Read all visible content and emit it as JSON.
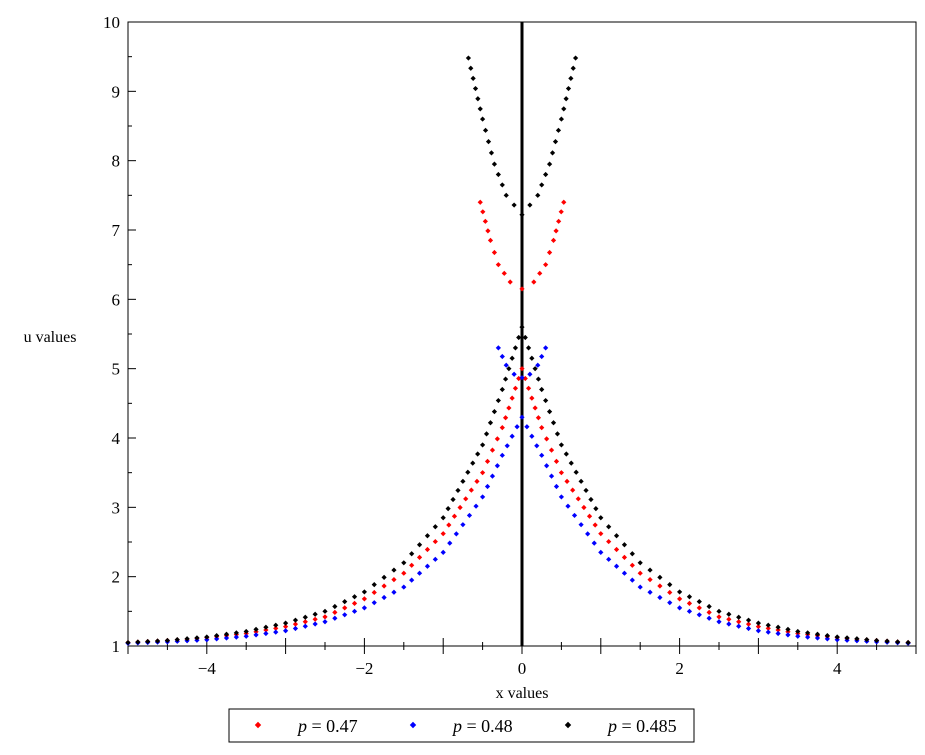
{
  "chart_data": {
    "type": "scatter",
    "title": "",
    "xlabel": "x values",
    "ylabel": "u values",
    "xlim": [
      -5,
      5
    ],
    "ylim": [
      1,
      10
    ],
    "x_ticks": [
      -4,
      -2,
      0,
      2,
      4
    ],
    "x_tick_labels": [
      "−4",
      "−2",
      "0",
      "2",
      "4"
    ],
    "y_ticks": [
      1,
      2,
      3,
      4,
      5,
      6,
      7,
      8,
      9,
      10
    ],
    "y_tick_labels": [
      "1",
      "2",
      "3",
      "4",
      "5",
      "6",
      "7",
      "8",
      "9",
      "10"
    ],
    "grid": false,
    "legend_position": "bottom",
    "series": [
      {
        "name": "p = 0.47",
        "legend_var": "p",
        "legend_value": "= 0.47",
        "color": "#ff0000",
        "lower_branch": [
          [
            -5.0,
            1.05
          ],
          [
            -4.5,
            1.08
          ],
          [
            -4.0,
            1.12
          ],
          [
            -3.5,
            1.18
          ],
          [
            -3.0,
            1.28
          ],
          [
            -2.5,
            1.42
          ],
          [
            -2.0,
            1.68
          ],
          [
            -1.5,
            2.05
          ],
          [
            -1.0,
            2.62
          ],
          [
            -0.5,
            3.5
          ],
          [
            -0.25,
            4.15
          ],
          [
            0.0,
            5.0
          ],
          [
            0.25,
            4.15
          ],
          [
            0.5,
            3.5
          ],
          [
            1.0,
            2.62
          ],
          [
            1.5,
            2.05
          ],
          [
            2.0,
            1.68
          ],
          [
            2.5,
            1.42
          ],
          [
            3.0,
            1.28
          ],
          [
            3.5,
            1.18
          ],
          [
            4.0,
            1.12
          ],
          [
            4.5,
            1.08
          ],
          [
            4.9,
            1.05
          ]
        ],
        "upper_branch": [
          [
            -0.53,
            7.4
          ],
          [
            -0.4,
            6.85
          ],
          [
            -0.3,
            6.5
          ],
          [
            -0.15,
            6.25
          ],
          [
            0.0,
            6.15
          ],
          [
            0.15,
            6.25
          ],
          [
            0.3,
            6.5
          ],
          [
            0.4,
            6.85
          ],
          [
            0.53,
            7.4
          ]
        ]
      },
      {
        "name": "p = 0.48",
        "legend_var": "p",
        "legend_value": "= 0.48",
        "color": "#0000ff",
        "lower_branch": [
          [
            -5.0,
            1.04
          ],
          [
            -4.5,
            1.06
          ],
          [
            -4.0,
            1.09
          ],
          [
            -3.5,
            1.14
          ],
          [
            -3.0,
            1.22
          ],
          [
            -2.5,
            1.35
          ],
          [
            -2.0,
            1.55
          ],
          [
            -1.5,
            1.85
          ],
          [
            -1.0,
            2.35
          ],
          [
            -0.5,
            3.15
          ],
          [
            -0.25,
            3.75
          ],
          [
            0.0,
            4.3
          ],
          [
            0.25,
            3.75
          ],
          [
            0.5,
            3.15
          ],
          [
            1.0,
            2.35
          ],
          [
            1.5,
            1.85
          ],
          [
            2.0,
            1.55
          ],
          [
            2.5,
            1.35
          ],
          [
            3.0,
            1.22
          ],
          [
            3.5,
            1.14
          ],
          [
            4.0,
            1.09
          ],
          [
            4.5,
            1.06
          ],
          [
            4.9,
            1.04
          ]
        ],
        "upper_branch": [
          [
            -0.3,
            5.3
          ],
          [
            -0.2,
            5.05
          ],
          [
            -0.1,
            4.92
          ],
          [
            0.0,
            4.87
          ],
          [
            0.1,
            4.92
          ],
          [
            0.2,
            5.05
          ],
          [
            0.3,
            5.3
          ]
        ]
      },
      {
        "name": "p = 0.485",
        "legend_var": "p",
        "legend_value": "= 0.485",
        "color": "#000000",
        "lower_branch": [
          [
            -5.0,
            1.05
          ],
          [
            -4.5,
            1.08
          ],
          [
            -4.0,
            1.13
          ],
          [
            -3.5,
            1.21
          ],
          [
            -3.0,
            1.33
          ],
          [
            -2.5,
            1.5
          ],
          [
            -2.0,
            1.78
          ],
          [
            -1.5,
            2.2
          ],
          [
            -1.0,
            2.85
          ],
          [
            -0.5,
            3.9
          ],
          [
            -0.25,
            4.7
          ],
          [
            0.0,
            5.6
          ],
          [
            0.25,
            4.7
          ],
          [
            0.5,
            3.9
          ],
          [
            1.0,
            2.85
          ],
          [
            1.5,
            2.2
          ],
          [
            2.0,
            1.78
          ],
          [
            2.5,
            1.5
          ],
          [
            3.0,
            1.33
          ],
          [
            3.5,
            1.21
          ],
          [
            4.0,
            1.13
          ],
          [
            4.5,
            1.08
          ],
          [
            4.9,
            1.05
          ]
        ],
        "upper_branch": [
          [
            -0.68,
            9.48
          ],
          [
            -0.5,
            8.6
          ],
          [
            -0.35,
            7.95
          ],
          [
            -0.2,
            7.5
          ],
          [
            0.0,
            7.22
          ],
          [
            0.2,
            7.5
          ],
          [
            0.35,
            7.95
          ],
          [
            0.5,
            8.6
          ],
          [
            0.68,
            9.48
          ]
        ]
      }
    ]
  }
}
